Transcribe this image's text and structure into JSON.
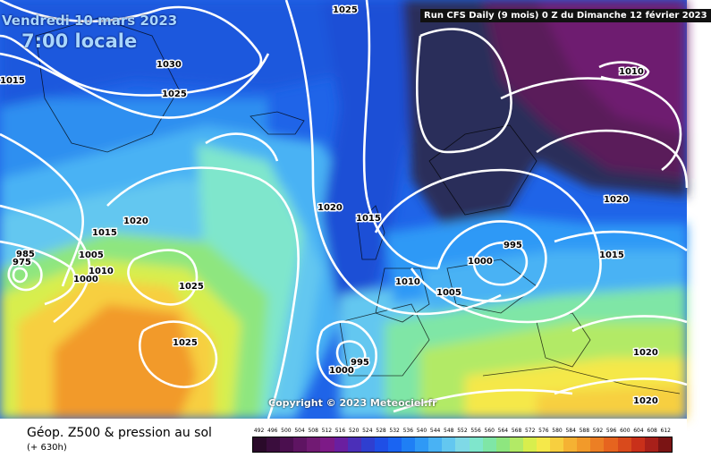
{
  "header": {
    "date": "Vendredi 10 mars 2023",
    "time": "7:00 locale",
    "run_info": "Run CFS Daily (9 mois) 0 Z du Dimanche 12 février 2023"
  },
  "copyright": "Copyright © 2023 Meteociel.fr",
  "footer": {
    "title": "Géop. Z500 & pression au sol",
    "subtitle": "(+ 630h)"
  },
  "legend": {
    "values": [
      "492",
      "496",
      "500",
      "504",
      "508",
      "512",
      "516",
      "520",
      "524",
      "528",
      "532",
      "536",
      "540",
      "544",
      "548",
      "552",
      "556",
      "560",
      "564",
      "568",
      "572",
      "576",
      "580",
      "584",
      "588",
      "592",
      "596",
      "600",
      "604",
      "608",
      "612"
    ],
    "colors": [
      "#2a0a2a",
      "#3a0d3d",
      "#4b0f4f",
      "#5e1462",
      "#711a73",
      "#7d1a87",
      "#6a1fa0",
      "#4b2fb8",
      "#2f3fd0",
      "#1f4fe6",
      "#1a64f2",
      "#1f7ff5",
      "#2f99f6",
      "#49b2f4",
      "#63c7f0",
      "#7fd9e6",
      "#7fe6cc",
      "#7fe6a6",
      "#8ee67f",
      "#b2ea66",
      "#d8ee4d",
      "#f5e84a",
      "#f7cf3f",
      "#f5b233",
      "#f29a2a",
      "#ec7f24",
      "#e6641f",
      "#d94a1c",
      "#c9301a",
      "#a8201a",
      "#7a1414"
    ]
  },
  "isobar_labels": [
    {
      "text": "1025"
    },
    {
      "text": "1030"
    },
    {
      "text": "1025"
    },
    {
      "text": "1015"
    },
    {
      "text": "1020"
    },
    {
      "text": "1015"
    },
    {
      "text": "1005"
    },
    {
      "text": "1010"
    },
    {
      "text": "1000"
    },
    {
      "text": "985"
    },
    {
      "text": "975"
    },
    {
      "text": "1025"
    },
    {
      "text": "1025"
    },
    {
      "text": "1020"
    },
    {
      "text": "1015"
    },
    {
      "text": "1010"
    },
    {
      "text": "1005"
    },
    {
      "text": "1000"
    },
    {
      "text": "995"
    },
    {
      "text": "1010"
    },
    {
      "text": "1020"
    },
    {
      "text": "1015"
    },
    {
      "text": "995"
    },
    {
      "text": "1000"
    },
    {
      "text": "1020"
    },
    {
      "text": "1020"
    }
  ]
}
